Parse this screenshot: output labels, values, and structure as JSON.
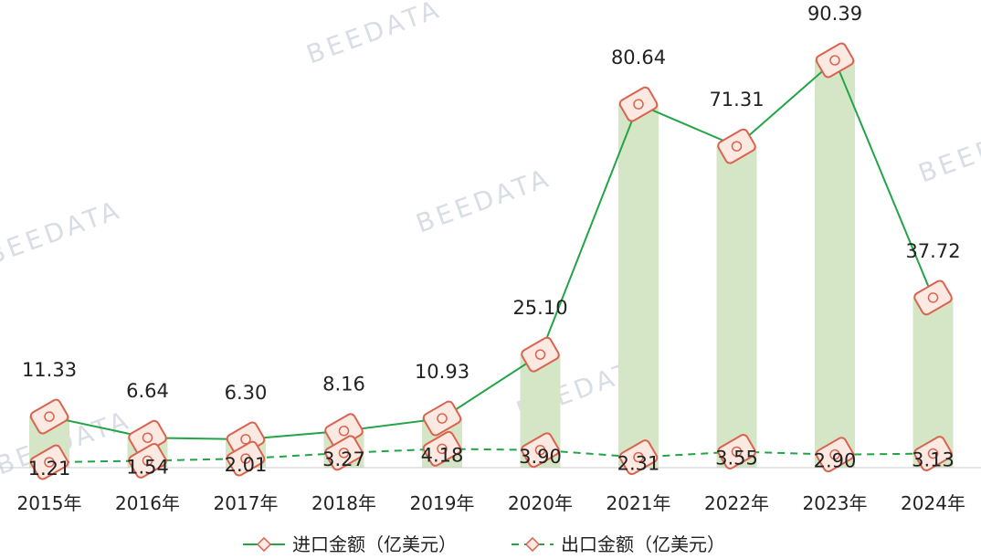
{
  "chart_data": {
    "type": "bar+line",
    "categories": [
      "2015年",
      "2016年",
      "2017年",
      "2018年",
      "2019年",
      "2020年",
      "2021年",
      "2022年",
      "2023年",
      "2024年"
    ],
    "series": [
      {
        "name": "进口金额（亿美元）",
        "style": "solid",
        "values": [
          11.33,
          6.64,
          6.3,
          8.16,
          10.93,
          25.1,
          80.64,
          71.31,
          90.39,
          37.72
        ],
        "labels": [
          "11.33",
          "6.64",
          "6.30",
          "8.16",
          "10.93",
          "25.10",
          "80.64",
          "71.31",
          "90.39",
          "37.72"
        ]
      },
      {
        "name": "出口金额（亿美元）",
        "style": "dashed",
        "values": [
          1.21,
          1.54,
          2.01,
          3.27,
          4.18,
          3.9,
          2.31,
          3.55,
          2.9,
          3.13
        ],
        "labels": [
          "1.21",
          "1.54",
          "2.01",
          "3.27",
          "4.18",
          "3.90",
          "2.31",
          "3.55",
          "2.90",
          "3.13"
        ]
      }
    ],
    "ylim": [
      0,
      100
    ],
    "grid": false,
    "legend_position": "bottom-center"
  },
  "colors": {
    "bar": "#d5e6c6",
    "line": "#22a447",
    "marker": "#d9634f",
    "marker_fill": "#fbe9e2",
    "text": "#222222",
    "axis": "#cccccc"
  },
  "watermark": {
    "brand": "BEEDATA"
  }
}
